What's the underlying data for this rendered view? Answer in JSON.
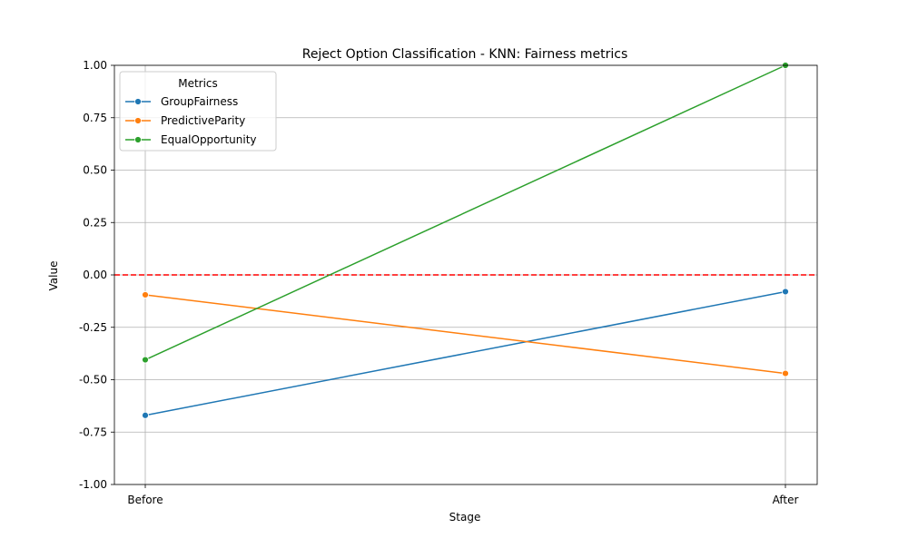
{
  "chart_data": {
    "type": "line",
    "title": "Reject Option Classification - KNN: Fairness metrics",
    "xlabel": "Stage",
    "ylabel": "Value",
    "categories": [
      "Before",
      "After"
    ],
    "ylim": [
      -1.0,
      1.0
    ],
    "yticks": [
      "-1.00",
      "-0.75",
      "-0.50",
      "-0.25",
      "0.00",
      "0.25",
      "0.50",
      "0.75",
      "1.00"
    ],
    "grid": true,
    "legend": {
      "title": "Metrics",
      "placement": "upper-left"
    },
    "reference_line": {
      "y": 0.0,
      "color": "#ff0000",
      "style": "dashed"
    },
    "series": [
      {
        "name": "GroupFairness",
        "color": "#1f77b4",
        "values": [
          -0.67,
          -0.08
        ]
      },
      {
        "name": "PredictiveParity",
        "color": "#ff7f0e",
        "values": [
          -0.095,
          -0.47
        ]
      },
      {
        "name": "EqualOpportunity",
        "color": "#2ca02c",
        "values": [
          -0.405,
          1.0
        ]
      }
    ]
  }
}
